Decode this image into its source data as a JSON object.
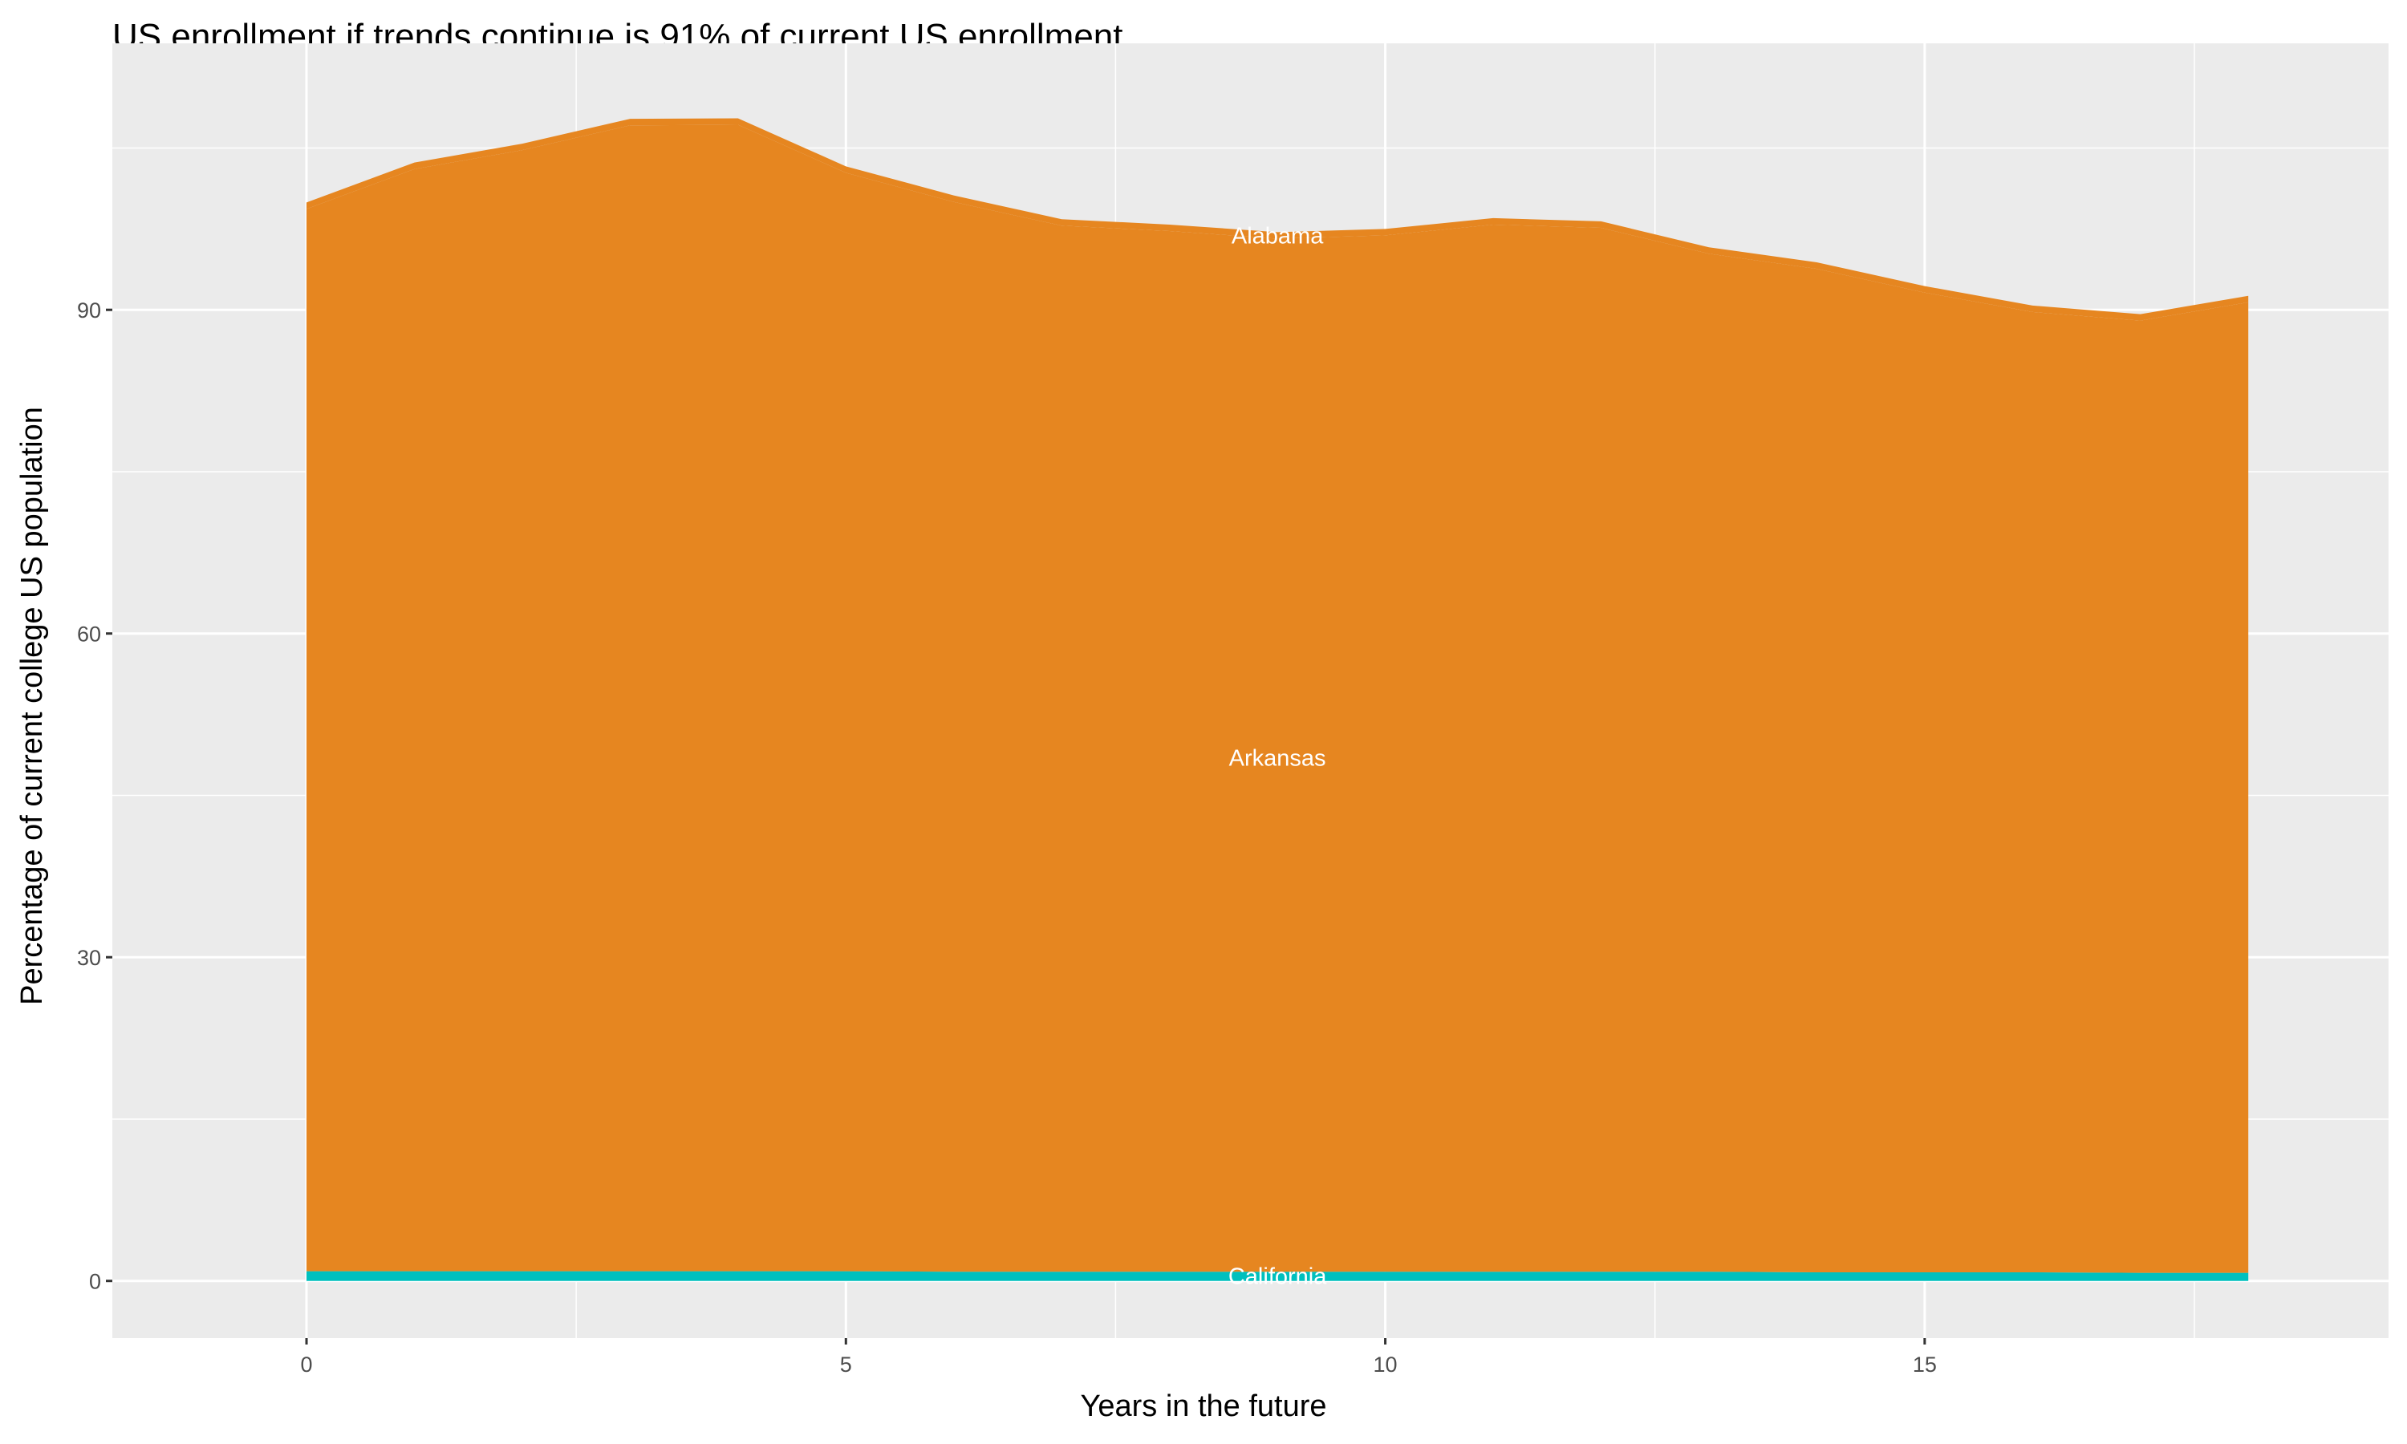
{
  "chart_data": {
    "type": "area",
    "stacked": true,
    "title": "US enrollment if trends continue is 91% of current US enrollment",
    "xlabel": "Years in the future",
    "ylabel": "Percentage of current college US population",
    "x": [
      0,
      1,
      2,
      3,
      4,
      5,
      6,
      7,
      8,
      9,
      10,
      11,
      12,
      13,
      14,
      15,
      16,
      17,
      18
    ],
    "xlim": [
      -1.8,
      19.3
    ],
    "ylim": [
      -5.3,
      114.7
    ],
    "x_ticks": [
      0,
      5,
      10,
      15
    ],
    "y_ticks": [
      0,
      30,
      60,
      90
    ],
    "grid": true,
    "legend": "none",
    "series": [
      {
        "name": "California",
        "color": "#00C0BE",
        "values": [
          0.9,
          0.9,
          0.9,
          0.9,
          0.9,
          0.9,
          0.85,
          0.85,
          0.85,
          0.85,
          0.85,
          0.85,
          0.85,
          0.85,
          0.8,
          0.8,
          0.8,
          0.75,
          0.75
        ]
      },
      {
        "name": "Arkansas",
        "color": "#E68620",
        "values": [
          98.45,
          102.15,
          103.9,
          106.2,
          106.25,
          101.8,
          99.15,
          96.95,
          96.45,
          95.75,
          96.05,
          97.05,
          96.75,
          94.35,
          93.0,
          90.8,
          89.0,
          88.25,
          89.95
        ]
      },
      {
        "name": "Alabama",
        "color": "#E68620",
        "values": [
          0.6,
          0.6,
          0.6,
          0.6,
          0.6,
          0.6,
          0.6,
          0.6,
          0.6,
          0.6,
          0.6,
          0.6,
          0.6,
          0.6,
          0.6,
          0.6,
          0.6,
          0.6,
          0.6
        ]
      }
    ],
    "labels": [
      {
        "text": "Alabama",
        "x": 9,
        "y": 96.9
      },
      {
        "text": "Arkansas",
        "x": 9,
        "y": 48.5
      },
      {
        "text": "California",
        "x": 9,
        "y": 0.45
      }
    ]
  }
}
